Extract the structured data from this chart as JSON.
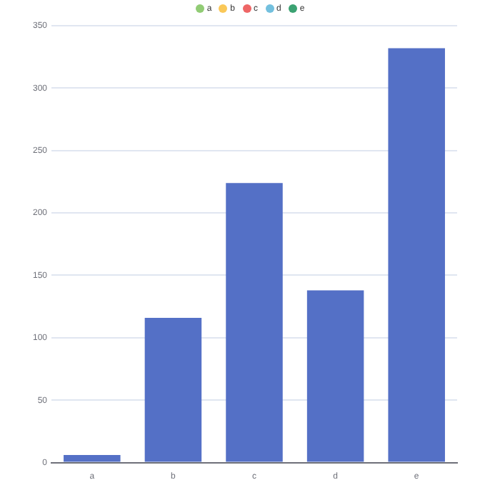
{
  "chart_data": {
    "type": "bar",
    "categories": [
      "a",
      "b",
      "c",
      "d",
      "e"
    ],
    "values": [
      6,
      116,
      224,
      138,
      332
    ],
    "color": "#5470c6",
    "ylim": [
      0,
      350
    ],
    "yticks": [
      0,
      50,
      100,
      150,
      200,
      250,
      300,
      350
    ],
    "grid": "y"
  }
}
